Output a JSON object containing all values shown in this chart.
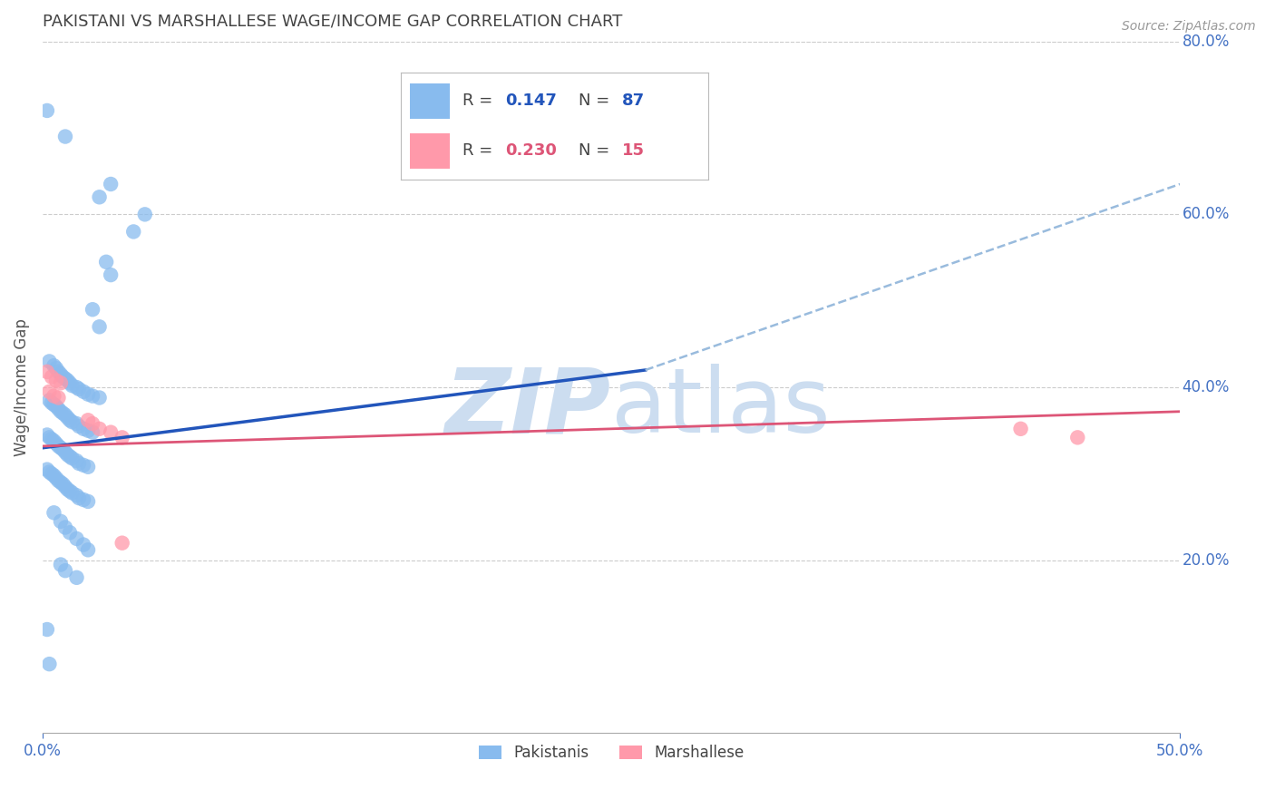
{
  "title": "PAKISTANI VS MARSHALLESE WAGE/INCOME GAP CORRELATION CHART",
  "source": "Source: ZipAtlas.com",
  "ylabel": "Wage/Income Gap",
  "xlim": [
    0.0,
    0.5
  ],
  "ylim": [
    0.0,
    0.8
  ],
  "yticks": [
    0.2,
    0.4,
    0.6,
    0.8
  ],
  "ytick_labels": [
    "20.0%",
    "40.0%",
    "60.0%",
    "80.0%"
  ],
  "xticks": [
    0.0,
    0.5
  ],
  "xtick_labels": [
    "0.0%",
    "50.0%"
  ],
  "background_color": "#ffffff",
  "grid_color": "#cccccc",
  "title_color": "#444444",
  "axis_label_color": "#555555",
  "tick_color": "#4472c4",
  "pakistani_color": "#88bbee",
  "pakistani_edge": "#6699cc",
  "marshallese_color": "#ff99aa",
  "marshallese_edge": "#ee7788",
  "trendline_blue_color": "#2255bb",
  "trendline_pink_color": "#dd5577",
  "trendline_dashed_color": "#99bbdd",
  "watermark_color": "#ccddf0",
  "legend_box_color": "#ffffff",
  "legend_border_color": "#bbbbbb",
  "pakistani_points": [
    [
      0.002,
      0.72
    ],
    [
      0.01,
      0.69
    ],
    [
      0.03,
      0.635
    ],
    [
      0.025,
      0.62
    ],
    [
      0.045,
      0.6
    ],
    [
      0.04,
      0.58
    ],
    [
      0.028,
      0.545
    ],
    [
      0.03,
      0.53
    ],
    [
      0.022,
      0.49
    ],
    [
      0.025,
      0.47
    ],
    [
      0.003,
      0.43
    ],
    [
      0.005,
      0.425
    ],
    [
      0.006,
      0.422
    ],
    [
      0.007,
      0.418
    ],
    [
      0.008,
      0.415
    ],
    [
      0.009,
      0.412
    ],
    [
      0.01,
      0.41
    ],
    [
      0.011,
      0.408
    ],
    [
      0.012,
      0.405
    ],
    [
      0.013,
      0.402
    ],
    [
      0.015,
      0.4
    ],
    [
      0.016,
      0.398
    ],
    [
      0.018,
      0.395
    ],
    [
      0.02,
      0.392
    ],
    [
      0.022,
      0.39
    ],
    [
      0.025,
      0.388
    ],
    [
      0.003,
      0.385
    ],
    [
      0.004,
      0.382
    ],
    [
      0.005,
      0.38
    ],
    [
      0.006,
      0.378
    ],
    [
      0.007,
      0.375
    ],
    [
      0.008,
      0.372
    ],
    [
      0.009,
      0.37
    ],
    [
      0.01,
      0.368
    ],
    [
      0.011,
      0.365
    ],
    [
      0.012,
      0.362
    ],
    [
      0.013,
      0.36
    ],
    [
      0.015,
      0.358
    ],
    [
      0.016,
      0.355
    ],
    [
      0.018,
      0.352
    ],
    [
      0.02,
      0.35
    ],
    [
      0.022,
      0.348
    ],
    [
      0.002,
      0.345
    ],
    [
      0.003,
      0.342
    ],
    [
      0.004,
      0.34
    ],
    [
      0.005,
      0.338
    ],
    [
      0.006,
      0.335
    ],
    [
      0.007,
      0.332
    ],
    [
      0.008,
      0.33
    ],
    [
      0.009,
      0.328
    ],
    [
      0.01,
      0.325
    ],
    [
      0.011,
      0.322
    ],
    [
      0.012,
      0.32
    ],
    [
      0.013,
      0.318
    ],
    [
      0.015,
      0.315
    ],
    [
      0.016,
      0.312
    ],
    [
      0.018,
      0.31
    ],
    [
      0.02,
      0.308
    ],
    [
      0.002,
      0.305
    ],
    [
      0.003,
      0.302
    ],
    [
      0.004,
      0.3
    ],
    [
      0.005,
      0.298
    ],
    [
      0.006,
      0.295
    ],
    [
      0.007,
      0.292
    ],
    [
      0.008,
      0.29
    ],
    [
      0.009,
      0.288
    ],
    [
      0.01,
      0.285
    ],
    [
      0.011,
      0.282
    ],
    [
      0.012,
      0.28
    ],
    [
      0.013,
      0.278
    ],
    [
      0.015,
      0.275
    ],
    [
      0.016,
      0.272
    ],
    [
      0.018,
      0.27
    ],
    [
      0.02,
      0.268
    ],
    [
      0.005,
      0.255
    ],
    [
      0.008,
      0.245
    ],
    [
      0.01,
      0.238
    ],
    [
      0.012,
      0.232
    ],
    [
      0.015,
      0.225
    ],
    [
      0.018,
      0.218
    ],
    [
      0.02,
      0.212
    ],
    [
      0.008,
      0.195
    ],
    [
      0.01,
      0.188
    ],
    [
      0.015,
      0.18
    ],
    [
      0.003,
      0.08
    ],
    [
      0.002,
      0.12
    ]
  ],
  "marshallese_points": [
    [
      0.002,
      0.418
    ],
    [
      0.004,
      0.412
    ],
    [
      0.006,
      0.408
    ],
    [
      0.008,
      0.405
    ],
    [
      0.003,
      0.395
    ],
    [
      0.005,
      0.39
    ],
    [
      0.007,
      0.388
    ],
    [
      0.02,
      0.362
    ],
    [
      0.022,
      0.358
    ],
    [
      0.025,
      0.352
    ],
    [
      0.03,
      0.348
    ],
    [
      0.035,
      0.342
    ],
    [
      0.035,
      0.22
    ],
    [
      0.43,
      0.352
    ],
    [
      0.455,
      0.342
    ]
  ],
  "blue_trendline_solid": [
    [
      0.0,
      0.33
    ],
    [
      0.265,
      0.42
    ]
  ],
  "pink_trendline_solid": [
    [
      0.0,
      0.332
    ],
    [
      0.5,
      0.372
    ]
  ],
  "blue_trendline_dashed": [
    [
      0.265,
      0.42
    ],
    [
      0.5,
      0.635
    ]
  ]
}
